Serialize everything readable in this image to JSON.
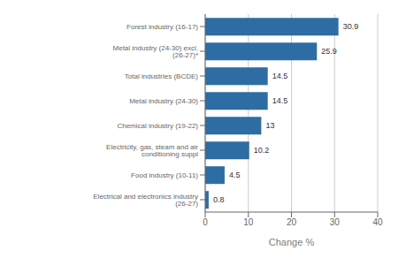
{
  "chart_data": {
    "type": "bar",
    "orientation": "horizontal",
    "xlabel": "Change %",
    "categories": [
      "Electrical and electronics industry (26-27)",
      "Food industry (10-11)",
      "Electricity, gas, steam and air conditioning suppl",
      "Chemical industry (19-22)",
      "Metal industry (24-30)",
      "Total industries (BCDE)",
      "Metal industry (24-30) excl. (26-27)*",
      "Forest industry (16-17)"
    ],
    "values": [
      0.8,
      4.5,
      10.2,
      13,
      14.5,
      14.5,
      25.9,
      30.9
    ],
    "value_labels": [
      "0.8",
      "4.5",
      "10.2",
      "13",
      "14.5",
      "14.5",
      "25.9",
      "30.9"
    ],
    "data_labels": true,
    "color": "#2E6DA4",
    "xlim": [
      0,
      40
    ],
    "xticks": [
      0,
      10,
      20,
      30,
      40
    ],
    "grid": true
  }
}
